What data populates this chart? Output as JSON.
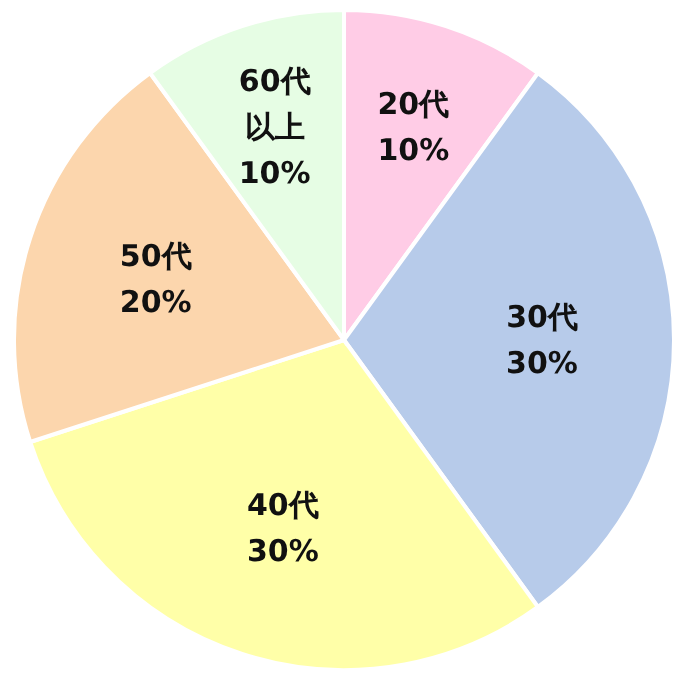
{
  "chart_data": {
    "type": "pie",
    "categories": [
      "20代",
      "30代",
      "40代",
      "50代",
      "60代以上"
    ],
    "values": [
      10,
      30,
      30,
      20,
      10
    ],
    "value_labels": [
      "10%",
      "30%",
      "30%",
      "20%",
      "10%"
    ],
    "colors": [
      "#ffcce6",
      "#b7cbea",
      "#ffffa8",
      "#fcd6ad",
      "#e6fde4"
    ]
  }
}
